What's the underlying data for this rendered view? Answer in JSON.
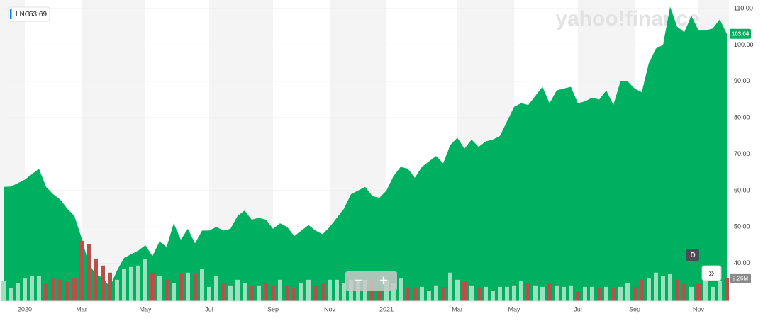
{
  "chart_data": {
    "type": "area",
    "symbol": "LNG",
    "legend_value": 53.69,
    "watermark": "yahoo!finance",
    "interval": "D",
    "zoom_out": "−",
    "zoom_in": "+",
    "expand": "»",
    "categories": [
      null,
      null,
      null,
      "2020",
      null,
      null,
      null,
      null,
      null,
      null,
      null,
      "Mar",
      null,
      null,
      null,
      null,
      null,
      null,
      null,
      null,
      "May",
      null,
      null,
      null,
      null,
      null,
      null,
      null,
      null,
      "Jul",
      null,
      null,
      null,
      null,
      null,
      null,
      null,
      null,
      "Sep",
      null,
      null,
      null,
      null,
      null,
      null,
      null,
      "Nov",
      null,
      null,
      null,
      null,
      null,
      null,
      null,
      "2021",
      null,
      null,
      null,
      null,
      null,
      null,
      null,
      null,
      null,
      "Mar",
      null,
      null,
      null,
      null,
      null,
      null,
      null,
      "May",
      null,
      null,
      null,
      null,
      null,
      null,
      null,
      null,
      "Jul",
      null,
      null,
      null,
      null,
      null,
      null,
      null,
      "Sep",
      null,
      null,
      null,
      null,
      null,
      null,
      null,
      null,
      "Nov",
      null,
      null,
      null,
      null
    ],
    "series": [
      {
        "color": "#00b061",
        "values": [
          61,
          61.1,
          62,
          63,
          64.5,
          66,
          61,
          59,
          57.5,
          55,
          53,
          47,
          40,
          37,
          36,
          33.5,
          38,
          41.5,
          42.5,
          43.5,
          45,
          42,
          46,
          44.5,
          51,
          46.5,
          49.5,
          45.5,
          49,
          49,
          50,
          49,
          49.5,
          53,
          54.5,
          52,
          52.5,
          52,
          49.5,
          51,
          50,
          47.5,
          49,
          50.5,
          49,
          48,
          50,
          52.5,
          55,
          59,
          60,
          61,
          58.5,
          58,
          60,
          64,
          66.5,
          66,
          63.5,
          66.5,
          68,
          69.5,
          67.5,
          72.5,
          74.5,
          71.5,
          74,
          72,
          73.5,
          74,
          75,
          79,
          83,
          84,
          83.5,
          86,
          88.5,
          84,
          87.5,
          88,
          88.5,
          84,
          84.5,
          85.5,
          85,
          87.5,
          83.5,
          90,
          90,
          88,
          87,
          95,
          99,
          100,
          110.5,
          105,
          103.5,
          108,
          104,
          104,
          104.5,
          107,
          103.04
        ]
      }
    ],
    "volume": {
      "up_color": "#9ee0bd",
      "down_color": "#b5504a",
      "ylim": [
        0,
        30
      ],
      "last_label": "9.26M",
      "values": [
        8.1,
        5.2,
        7.2,
        9.2,
        10.1,
        10.1,
        7.2,
        9.2,
        8.7,
        8.1,
        9.2,
        24.6,
        23.1,
        17.3,
        14.5,
        11.6,
        8.7,
        13,
        13.9,
        14.5,
        17.3,
        11.6,
        10.1,
        8.7,
        7.2,
        11.6,
        11.6,
        11,
        13,
        5.8,
        10.1,
        7.2,
        6.4,
        8.7,
        7.2,
        6.4,
        6.4,
        7.2,
        6.4,
        8.7,
        6.4,
        5.2,
        7.2,
        8.7,
        6.4,
        7.2,
        8.7,
        8.7,
        7.2,
        8.7,
        8.7,
        8.7,
        8.7,
        4.3,
        8.7,
        7.2,
        9.2,
        5.8,
        5.2,
        5.8,
        4.3,
        6.4,
        5.8,
        11.6,
        8.7,
        8.1,
        6.4,
        5.2,
        5.8,
        4.3,
        5.8,
        5.8,
        6.4,
        8.1,
        7.2,
        6.4,
        5.8,
        7.2,
        6.4,
        5.8,
        6.4,
        4.3,
        5.8,
        5.8,
        5.2,
        5.8,
        5.2,
        5.8,
        7.2,
        5.8,
        8.7,
        9.2,
        11.6,
        10.1,
        11,
        8.7,
        7.2,
        5.8,
        7.2,
        8.1,
        5.8,
        8.1,
        9.26
      ]
    },
    "ylim": [
      30,
      110
    ],
    "yticks": [
      {
        "value": 40,
        "label": "40.00"
      },
      {
        "value": 50,
        "label": "50.00"
      },
      {
        "value": 60,
        "label": "60.00"
      },
      {
        "value": 70,
        "label": "70.00"
      },
      {
        "value": 80,
        "label": "80.00"
      },
      {
        "value": 90,
        "label": "90.00"
      },
      {
        "value": 100,
        "label": "100.00"
      },
      {
        "value": 110,
        "label": "110.00"
      }
    ],
    "grid": true
  }
}
